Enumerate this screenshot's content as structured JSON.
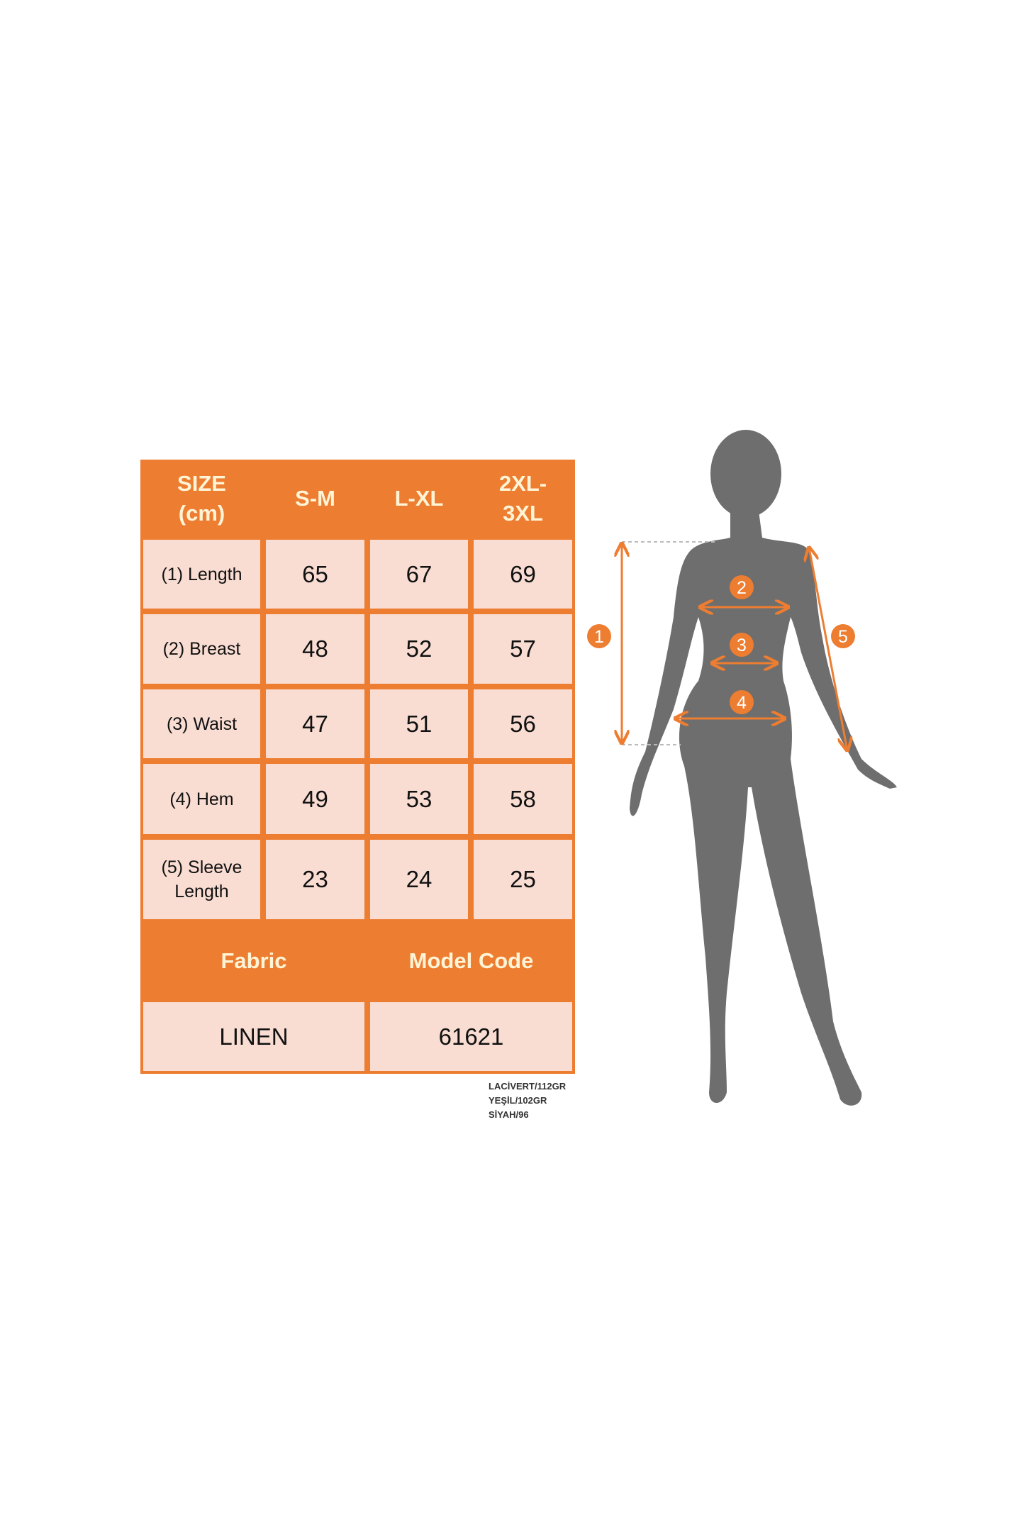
{
  "colors": {
    "accent": "#ED7D31",
    "cell": "#F9DDD3",
    "header_text": "#FFF4D6",
    "silhouette": "#6E6E6E"
  },
  "table": {
    "header": [
      "SIZE\n(cm)",
      "S-M",
      "L-XL",
      "2XL-\n3XL"
    ],
    "rows": [
      {
        "label": "(1) Length",
        "values": [
          "65",
          "67",
          "69"
        ]
      },
      {
        "label": "(2) Breast",
        "values": [
          "48",
          "52",
          "57"
        ]
      },
      {
        "label": "(3) Waist",
        "values": [
          "47",
          "51",
          "56"
        ]
      },
      {
        "label": "(4) Hem",
        "values": [
          "49",
          "53",
          "58"
        ]
      },
      {
        "label": "(5) Sleeve\nLength",
        "values": [
          "23",
          "24",
          "25"
        ]
      }
    ],
    "footer_header": [
      "Fabric",
      "Model Code"
    ],
    "footer_values": [
      "LINEN",
      "61621"
    ]
  },
  "notes": [
    "LACİVERT/112GR",
    "YEŞİL/102GR",
    "SİYAH/96"
  ],
  "figure": {
    "markers": [
      "1",
      "2",
      "3",
      "4",
      "5"
    ]
  }
}
